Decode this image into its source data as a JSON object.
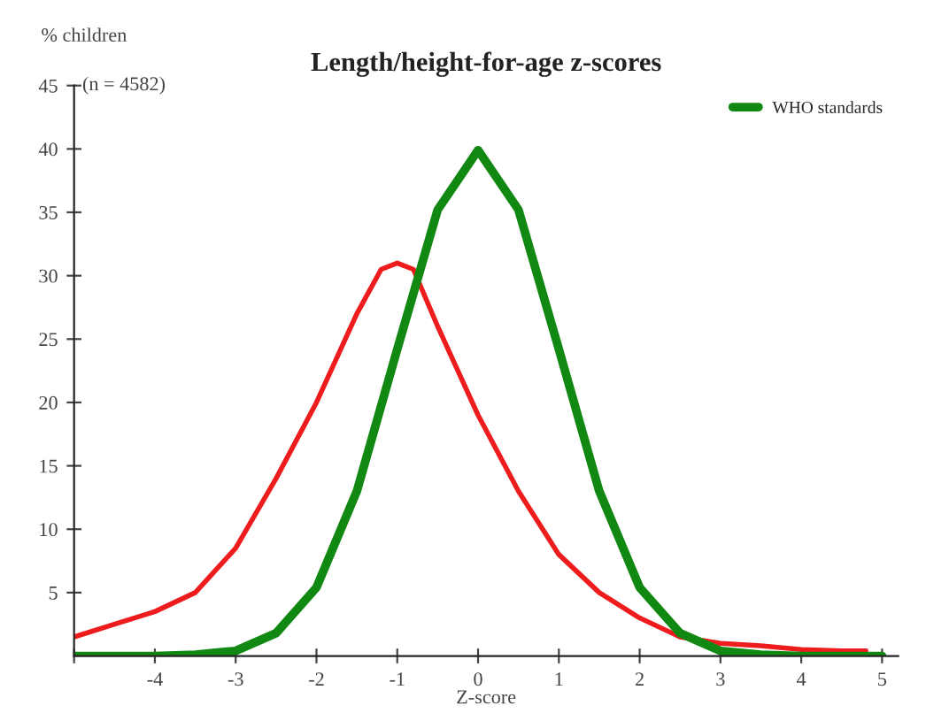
{
  "chart_data": {
    "type": "line",
    "title": "Length/height-for-age z-scores",
    "xlabel": "Z-score",
    "ylabel": "% children",
    "annotations": [
      "(n = 4582)"
    ],
    "x": [
      -5,
      -4.5,
      -4,
      -3.5,
      -3,
      -2.5,
      -2,
      -1.5,
      -1.2,
      -1,
      -0.8,
      -0.5,
      0,
      0.5,
      1,
      1.5,
      2,
      2.5,
      3,
      3.5,
      4,
      4.5,
      4.8
    ],
    "series": [
      {
        "color": "#ee1c1c",
        "values": [
          1.5,
          2.5,
          3.5,
          5,
          8.5,
          14,
          20,
          27,
          30.5,
          31,
          30.5,
          26,
          19,
          13,
          8,
          5,
          3,
          1.5,
          1,
          0.8,
          0.5,
          0.4,
          0.4
        ]
      },
      {
        "name": "WHO standards",
        "color": "#118811",
        "x": [
          -5,
          -4,
          -3.5,
          -3,
          -2.5,
          -2,
          -1.5,
          -1,
          -0.5,
          0,
          0.5,
          1,
          1.5,
          2,
          2.5,
          3,
          3.5,
          4,
          5
        ],
        "values": [
          0,
          0,
          0.1,
          0.4,
          1.8,
          5.4,
          13,
          24.2,
          35.2,
          39.9,
          35.2,
          24.2,
          13,
          5.4,
          1.8,
          0.4,
          0.1,
          0,
          0
        ]
      }
    ],
    "xlim": [
      -5,
      5.2
    ],
    "ylim": [
      0,
      45
    ],
    "xticks": [
      {
        "value": -5,
        "label": null
      },
      -4,
      -3,
      -2,
      -1,
      0,
      1,
      2,
      3,
      4,
      5
    ],
    "yticks": [
      5,
      10,
      15,
      20,
      25,
      30,
      35,
      40,
      45
    ],
    "grid": false,
    "legend": "top right",
    "marker": "none",
    "line_style": "solid"
  }
}
